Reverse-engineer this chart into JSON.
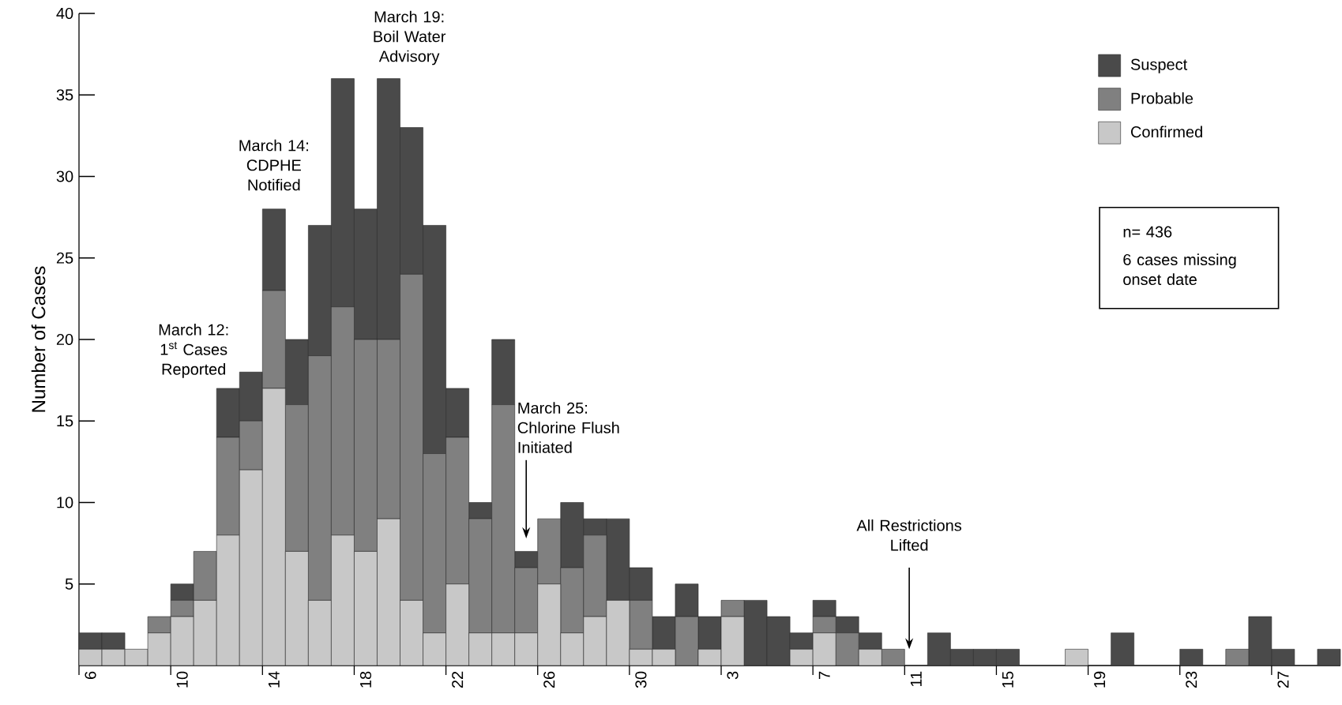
{
  "chart_data": {
    "type": "bar",
    "stacked": true,
    "ylabel": "Number of Cases",
    "categories": [
      "6",
      null,
      null,
      null,
      "10",
      null,
      null,
      null,
      "14",
      null,
      null,
      null,
      "18",
      null,
      null,
      null,
      "22",
      null,
      null,
      null,
      "26",
      null,
      null,
      null,
      "30",
      null,
      null,
      null,
      "3",
      null,
      null,
      null,
      "7",
      null,
      null,
      null,
      "11",
      null,
      null,
      null,
      "15",
      null,
      null,
      null,
      "19",
      null,
      null,
      null,
      "23",
      null,
      null,
      null,
      "27",
      null,
      null
    ],
    "series": [
      {
        "name": "Confirmed",
        "color": "#c8c8c8",
        "values": [
          1,
          1,
          1,
          2,
          3,
          4,
          8,
          12,
          17,
          7,
          4,
          8,
          7,
          9,
          4,
          2,
          5,
          2,
          2,
          2,
          5,
          2,
          3,
          4,
          1,
          1,
          0,
          1,
          3,
          0,
          0,
          1,
          2,
          0,
          1,
          0,
          0,
          0,
          0,
          0,
          0,
          0,
          0,
          1,
          0,
          0,
          0,
          0,
          0,
          0,
          0,
          0,
          0,
          0,
          0
        ]
      },
      {
        "name": "Probable",
        "color": "#808080",
        "values": [
          0,
          0,
          0,
          1,
          1,
          3,
          6,
          3,
          6,
          9,
          15,
          14,
          13,
          11,
          20,
          11,
          9,
          7,
          14,
          4,
          4,
          4,
          5,
          0,
          3,
          0,
          3,
          0,
          1,
          0,
          0,
          0,
          1,
          2,
          0,
          1,
          0,
          0,
          0,
          0,
          0,
          0,
          0,
          0,
          0,
          0,
          0,
          0,
          0,
          0,
          1,
          0,
          0,
          0,
          0
        ]
      },
      {
        "name": "Suspect",
        "color": "#4a4a4a",
        "values": [
          1,
          1,
          0,
          0,
          1,
          0,
          3,
          3,
          5,
          4,
          8,
          14,
          8,
          16,
          9,
          14,
          3,
          1,
          4,
          1,
          0,
          4,
          1,
          5,
          2,
          2,
          2,
          2,
          0,
          4,
          3,
          1,
          1,
          1,
          1,
          0,
          0,
          2,
          1,
          1,
          1,
          0,
          0,
          0,
          0,
          2,
          0,
          0,
          1,
          0,
          0,
          3,
          1,
          0,
          1
        ]
      }
    ],
    "ylim": [
      0,
      40
    ],
    "yticks": [
      5,
      10,
      15,
      20,
      25,
      30,
      35,
      40
    ],
    "legend": "top right",
    "annotations": [
      "March 12: 1$^{st}$ Cases Reported",
      "March 14: CDPHE Notified",
      "March 19: Boil Water Advisory",
      "March 25: Chlorine Flush Initiated",
      "All Restrictions Lifted",
      "n= 436",
      "6 cases missing onset date"
    ]
  }
}
